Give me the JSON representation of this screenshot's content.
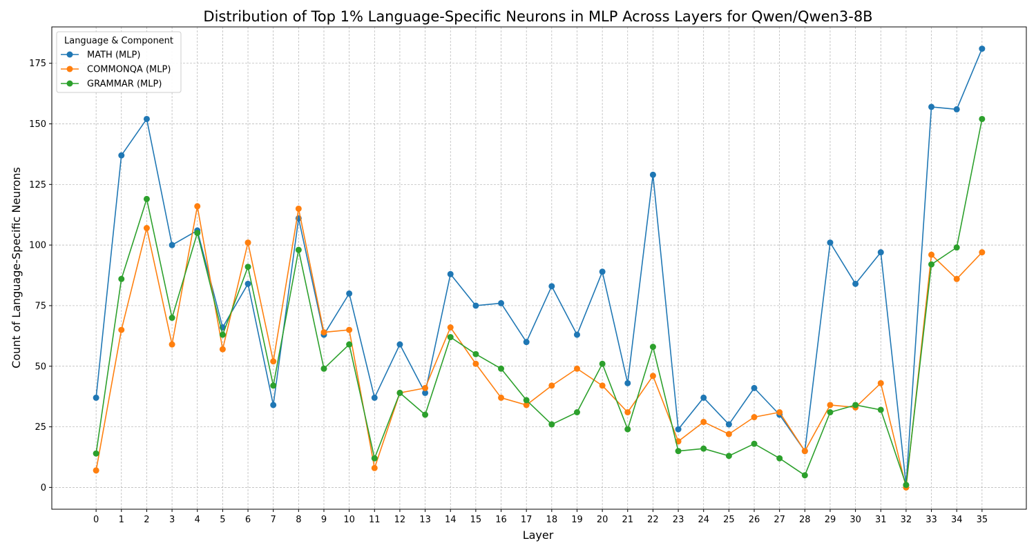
{
  "chart_data": {
    "type": "line",
    "title": "Distribution of Top 1% Language-Specific Neurons in MLP Across Layers for Qwen/Qwen3-8B",
    "xlabel": "Layer",
    "ylabel": "Count of Language-Specific Neurons",
    "x": [
      0,
      1,
      2,
      3,
      4,
      5,
      6,
      7,
      8,
      9,
      10,
      11,
      12,
      13,
      14,
      15,
      16,
      17,
      18,
      19,
      20,
      21,
      22,
      23,
      24,
      25,
      26,
      27,
      28,
      29,
      30,
      31,
      32,
      33,
      34,
      35
    ],
    "xlim": [
      -1.75,
      36.75
    ],
    "ylim": [
      -9,
      190
    ],
    "yticks": [
      0,
      25,
      50,
      75,
      100,
      125,
      150,
      175
    ],
    "grid": true,
    "legend": {
      "title": "Language & Component",
      "placement": "top-left"
    },
    "series": [
      {
        "name": "MATH (MLP)",
        "color": "#1f77b4",
        "values": [
          37,
          137,
          152,
          100,
          106,
          66,
          84,
          34,
          111,
          63,
          80,
          37,
          59,
          39,
          88,
          75,
          76,
          60,
          83,
          63,
          89,
          43,
          129,
          24,
          37,
          26,
          41,
          30,
          15,
          101,
          84,
          97,
          1,
          157,
          156,
          181
        ]
      },
      {
        "name": "COMMONQA (MLP)",
        "color": "#ff7f0e",
        "values": [
          7,
          65,
          107,
          59,
          116,
          57,
          101,
          52,
          115,
          64,
          65,
          8,
          39,
          41,
          66,
          51,
          37,
          34,
          42,
          49,
          42,
          31,
          46,
          19,
          27,
          22,
          29,
          31,
          15,
          34,
          33,
          43,
          0,
          96,
          86,
          97
        ]
      },
      {
        "name": "GRAMMAR (MLP)",
        "color": "#2ca02c",
        "values": [
          14,
          86,
          119,
          70,
          105,
          63,
          91,
          42,
          98,
          49,
          59,
          12,
          39,
          30,
          62,
          55,
          49,
          36,
          26,
          31,
          51,
          24,
          58,
          15,
          16,
          13,
          18,
          12,
          5,
          31,
          34,
          32,
          1,
          92,
          99,
          152
        ]
      }
    ]
  }
}
